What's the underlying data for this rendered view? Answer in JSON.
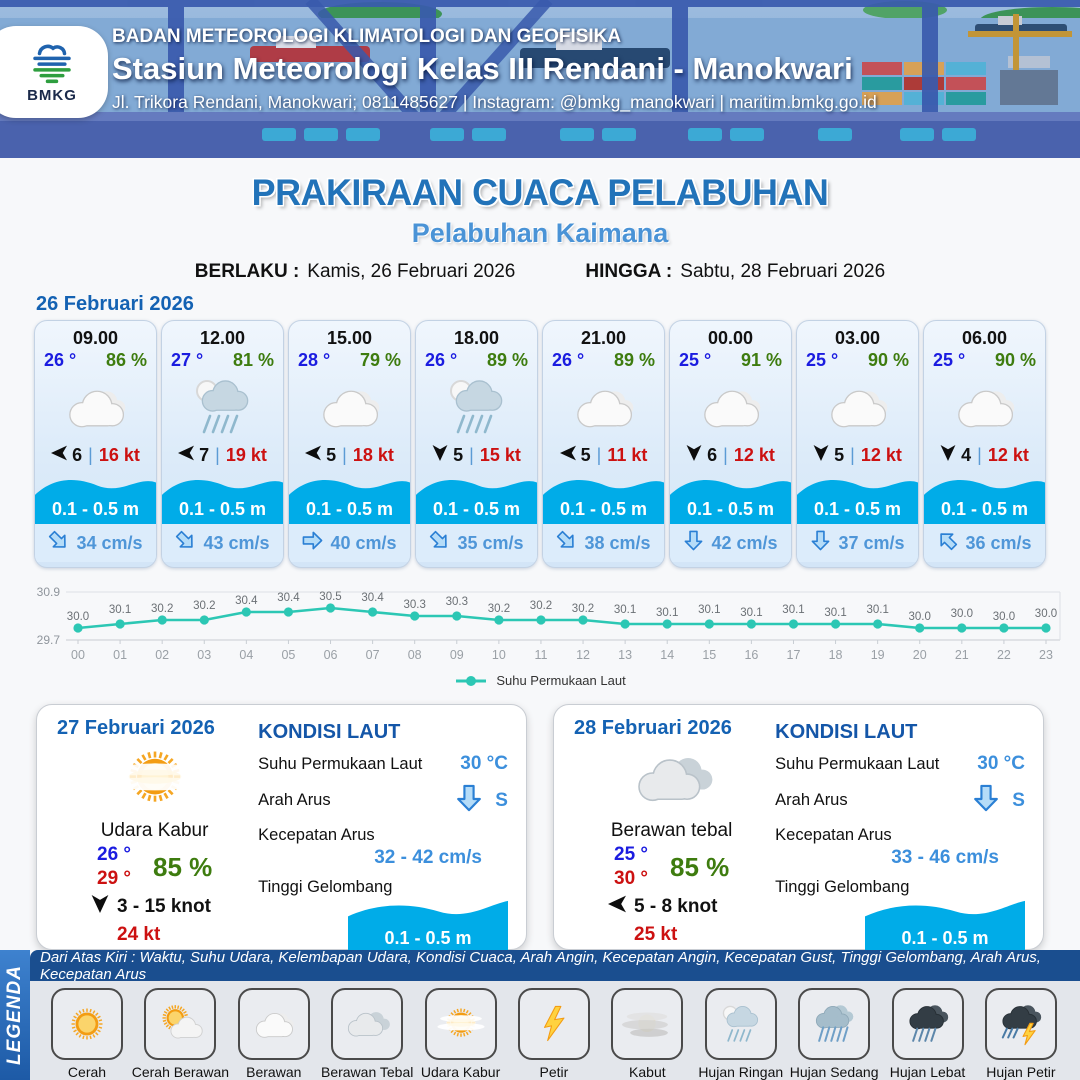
{
  "header": {
    "agency": "BADAN METEOROLOGI KLIMATOLOGI DAN GEOFISIKA",
    "station": "Stasiun Meteorologi Kelas III Rendani - Manokwari",
    "contact": "Jl. Trikora Rendani, Manokwari; 0811485627 | Instagram: @bmkg_manokwari | maritim.bmkg.go.id",
    "logo": "BMKG"
  },
  "title": {
    "main": "PRAKIRAAN CUACA PELABUHAN",
    "subtitle": "Pelabuhan Kaimana",
    "berlaku_label": "BERLAKU :",
    "berlaku_value": "Kamis, 26 Februari 2026",
    "hingga_label": "HINGGA :",
    "hingga_value": "Sabtu, 28 Februari 2026"
  },
  "hourly": {
    "date": "26 Februari 2026",
    "cards": [
      {
        "time": "09.00",
        "temp": "26 °",
        "humidity": "86 %",
        "icon": "berawan",
        "wind_dir_deg": -90,
        "wind_speed": "6",
        "gust": "16 kt",
        "wave": "0.1 - 0.5 m",
        "current_dir_deg": 135,
        "current": "34 cm/s"
      },
      {
        "time": "12.00",
        "temp": "27 °",
        "humidity": "81 %",
        "icon": "hujan-ringan",
        "wind_dir_deg": -90,
        "wind_speed": "7",
        "gust": "19 kt",
        "wave": "0.1 - 0.5 m",
        "current_dir_deg": 135,
        "current": "43 cm/s"
      },
      {
        "time": "15.00",
        "temp": "28 °",
        "humidity": "79 %",
        "icon": "berawan",
        "wind_dir_deg": -90,
        "wind_speed": "5",
        "gust": "18 kt",
        "wave": "0.1 - 0.5 m",
        "current_dir_deg": 90,
        "current": "40 cm/s"
      },
      {
        "time": "18.00",
        "temp": "26 °",
        "humidity": "89 %",
        "icon": "hujan-ringan",
        "wind_dir_deg": 180,
        "wind_speed": "5",
        "gust": "15 kt",
        "wave": "0.1 - 0.5 m",
        "current_dir_deg": 135,
        "current": "35 cm/s"
      },
      {
        "time": "21.00",
        "temp": "26 °",
        "humidity": "89 %",
        "icon": "berawan",
        "wind_dir_deg": -90,
        "wind_speed": "5",
        "gust": "11 kt",
        "wave": "0.1 - 0.5 m",
        "current_dir_deg": 135,
        "current": "38 cm/s"
      },
      {
        "time": "00.00",
        "temp": "25 °",
        "humidity": "91 %",
        "icon": "berawan",
        "wind_dir_deg": 180,
        "wind_speed": "6",
        "gust": "12 kt",
        "wave": "0.1 - 0.5 m",
        "current_dir_deg": 180,
        "current": "42 cm/s"
      },
      {
        "time": "03.00",
        "temp": "25 °",
        "humidity": "90 %",
        "icon": "berawan",
        "wind_dir_deg": 180,
        "wind_speed": "5",
        "gust": "12 kt",
        "wave": "0.1 - 0.5 m",
        "current_dir_deg": 180,
        "current": "37 cm/s"
      },
      {
        "time": "06.00",
        "temp": "25 °",
        "humidity": "90 %",
        "icon": "berawan",
        "wind_dir_deg": 180,
        "wind_speed": "4",
        "gust": "12 kt",
        "wave": "0.1 - 0.5 m",
        "current_dir_deg": 315,
        "current": "36 cm/s"
      }
    ]
  },
  "chart_data": {
    "type": "line",
    "x": [
      "00",
      "01",
      "02",
      "03",
      "04",
      "05",
      "06",
      "07",
      "08",
      "09",
      "10",
      "11",
      "12",
      "13",
      "14",
      "15",
      "16",
      "17",
      "18",
      "19",
      "20",
      "21",
      "22",
      "23"
    ],
    "series": [
      {
        "name": "Suhu Permukaan Laut",
        "values": [
          30.0,
          30.1,
          30.2,
          30.2,
          30.4,
          30.4,
          30.5,
          30.4,
          30.3,
          30.3,
          30.2,
          30.2,
          30.2,
          30.1,
          30.1,
          30.1,
          30.1,
          30.1,
          30.1,
          30.1,
          30.0,
          30.0,
          30.0,
          30.0
        ]
      }
    ],
    "ylim": [
      29.7,
      30.9
    ],
    "yticks": [
      "29.7",
      "30.9"
    ],
    "color": "#2cc7b4",
    "grid": true,
    "legend_position": "bottom"
  },
  "daily": {
    "labels": {
      "kondisi_laut": "KONDISI LAUT",
      "sst": "Suhu Permukaan Laut",
      "arah_arus": "Arah Arus",
      "kecepatan_arus": "Kecepatan Arus",
      "tinggi_gelombang": "Tinggi Gelombang"
    },
    "cards": [
      {
        "date": "27 Februari 2026",
        "icon": "udara-kabur",
        "condition": "Udara Kabur",
        "temp_min": "26 °",
        "temp_max": "29 °",
        "humidity": "85 %",
        "wind_dir_deg": 180,
        "wind_range": "3  - 15 knot",
        "gust": "24 kt",
        "sst": "30 °C",
        "current_dir": "S",
        "current_dir_deg": 180,
        "current_range": "32  - 42 cm/s",
        "wave": "0.1 - 0.5 m"
      },
      {
        "date": "28 Februari 2026",
        "icon": "berawan-tebal",
        "condition": "Berawan tebal",
        "temp_min": "25 °",
        "temp_max": "30 °",
        "humidity": "85 %",
        "wind_dir_deg": -90,
        "wind_range": "5  - 8 knot",
        "gust": "25 kt",
        "sst": "30 °C",
        "current_dir": "S",
        "current_dir_deg": 180,
        "current_range": "33 - 46 cm/s",
        "wave": "0.1 - 0.5 m"
      }
    ]
  },
  "legend": {
    "strip": "LEGENDA",
    "caption": "Dari Atas Kiri : Waktu, Suhu Udara, Kelembapan Udara, Kondisi Cuaca, Arah Angin, Kecepatan Angin, Kecepatan Gust, Tinggi Gelombang, Arah Arus, Kecepatan Arus",
    "items": [
      {
        "label": "Cerah",
        "icon": "cerah"
      },
      {
        "label": "Cerah Berawan",
        "icon": "cerah-berawan"
      },
      {
        "label": "Berawan",
        "icon": "berawan"
      },
      {
        "label": "Berawan Tebal",
        "icon": "berawan-tebal"
      },
      {
        "label": "Udara Kabur",
        "icon": "udara-kabur"
      },
      {
        "label": "Petir",
        "icon": "petir"
      },
      {
        "label": "Kabut",
        "icon": "kabut"
      },
      {
        "label": "Hujan Ringan",
        "icon": "hujan-ringan"
      },
      {
        "label": "Hujan Sedang",
        "icon": "hujan-sedang"
      },
      {
        "label": "Hujan Lebat",
        "icon": "hujan-lebat"
      },
      {
        "label": "Hujan Petir",
        "icon": "hujan-petir"
      }
    ]
  },
  "colors": {
    "accent_blue": "#2273b9",
    "subtitle_blue": "#4a93d6",
    "date_blue": "#1462b3",
    "temp_blue": "#1b1ce0",
    "humidity_green": "#3e7c0f",
    "gust_red": "#cc1111",
    "wave_blue": "#00ace8",
    "current_blue": "#4f96d8",
    "navy": "#1a4e8f",
    "chart_teal": "#2cc7b4"
  }
}
